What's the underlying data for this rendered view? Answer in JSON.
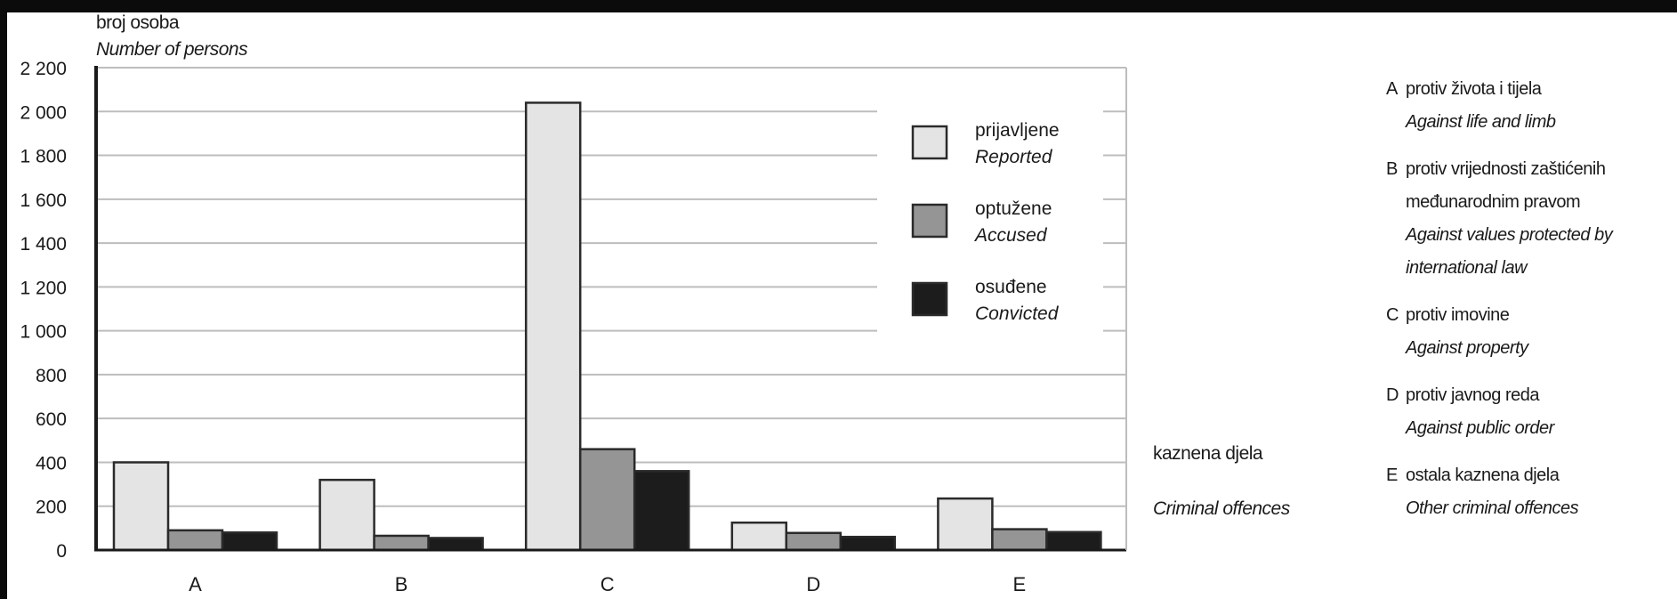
{
  "chart_data": {
    "type": "bar",
    "ylabel": "broj osoba",
    "ylabel_en": "Number of persons",
    "xlabel": "kaznena djela",
    "xlabel_en": "Criminal offences",
    "categories": [
      "A",
      "B",
      "C",
      "D",
      "E"
    ],
    "ylim": [
      0,
      2200
    ],
    "yticks": [
      0,
      200,
      400,
      600,
      800,
      1000,
      1200,
      1400,
      1600,
      1800,
      2000,
      2200
    ],
    "ytick_labels": [
      "0",
      "200",
      "400",
      "600",
      "800",
      "1 000",
      "1 200",
      "1 400",
      "1 600",
      "1 800",
      "2 000",
      "2 200"
    ],
    "grid": true,
    "legend_position": "top-right",
    "series": [
      {
        "name": "prijavljene",
        "name_en": "Reported",
        "color": "#e4e4e4",
        "values": [
          400,
          320,
          2040,
          125,
          235
        ]
      },
      {
        "name": "optužene",
        "name_en": "Accused",
        "color": "#959595",
        "values": [
          90,
          65,
          460,
          78,
          95
        ]
      },
      {
        "name": "osuđene",
        "name_en": "Convicted",
        "color": "#1c1c1c",
        "values": [
          80,
          55,
          360,
          60,
          82
        ]
      }
    ]
  },
  "category_legend": [
    {
      "letter": "A",
      "lines": [
        "protiv života i tijela"
      ],
      "lines_en": [
        "Against life and limb"
      ]
    },
    {
      "letter": "B",
      "lines": [
        "protiv vrijednosti zaštićenih",
        "međunarodnim pravom"
      ],
      "lines_en": [
        "Against values protected by",
        "international law"
      ]
    },
    {
      "letter": "C",
      "lines": [
        "protiv imovine"
      ],
      "lines_en": [
        "Against property"
      ]
    },
    {
      "letter": "D",
      "lines": [
        "protiv javnog reda"
      ],
      "lines_en": [
        "Against public order"
      ]
    },
    {
      "letter": "E",
      "lines": [
        "ostala kaznena djela"
      ],
      "lines_en": [
        "Other criminal offences"
      ]
    }
  ]
}
